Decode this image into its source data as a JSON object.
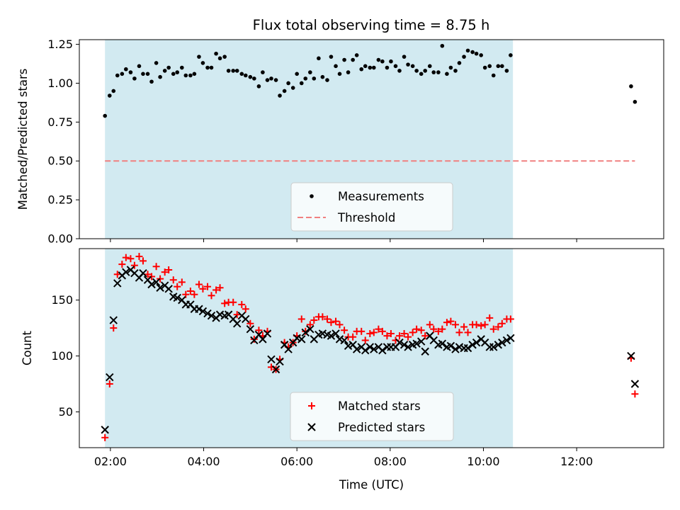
{
  "title": "Flux total observing time = 8.75 h",
  "chart_data": [
    {
      "type": "scatter",
      "panel": "top",
      "ylabel": "Matched/Predicted stars",
      "ylim": [
        0,
        1.28
      ],
      "yticks": [
        "0.00",
        "0.25",
        "0.50",
        "0.75",
        "1.00",
        "1.25"
      ],
      "ytick_values": [
        0,
        0.25,
        0.5,
        0.75,
        1.0,
        1.25
      ],
      "grid": false,
      "legend": {
        "placement": "bottom-center",
        "entries": [
          "Measurements",
          "Threshold"
        ]
      },
      "threshold": {
        "name": "Threshold",
        "value": 0.5,
        "x_start": "01:53",
        "x_end": "13:15",
        "color": "#f08080"
      },
      "series": [
        {
          "name": "Measurements",
          "color": "#000000",
          "x": [
            "01:53",
            "01:59",
            "02:04",
            "02:09",
            "02:15",
            "02:20",
            "02:26",
            "02:31",
            "02:37",
            "02:42",
            "02:48",
            "02:53",
            "02:59",
            "03:04",
            "03:10",
            "03:15",
            "03:21",
            "03:26",
            "03:32",
            "03:37",
            "03:43",
            "03:48",
            "03:54",
            "03:59",
            "04:05",
            "04:10",
            "04:16",
            "04:21",
            "04:27",
            "04:32",
            "04:38",
            "04:43",
            "04:49",
            "04:54",
            "05:00",
            "05:05",
            "05:11",
            "05:16",
            "05:22",
            "05:27",
            "05:33",
            "05:38",
            "05:44",
            "05:49",
            "05:55",
            "06:00",
            "06:06",
            "06:11",
            "06:17",
            "06:22",
            "06:28",
            "06:33",
            "06:39",
            "06:44",
            "06:50",
            "06:55",
            "07:01",
            "07:06",
            "07:12",
            "07:17",
            "07:23",
            "07:28",
            "07:34",
            "07:39",
            "07:45",
            "07:50",
            "07:56",
            "08:01",
            "08:07",
            "08:12",
            "08:18",
            "08:23",
            "08:29",
            "08:34",
            "08:40",
            "08:45",
            "08:51",
            "08:56",
            "09:02",
            "09:07",
            "09:13",
            "09:18",
            "09:24",
            "09:29",
            "09:35",
            "09:40",
            "09:46",
            "09:51",
            "09:57",
            "10:02",
            "10:08",
            "10:13",
            "10:19",
            "10:24",
            "10:30",
            "10:35",
            "13:10",
            "13:15"
          ],
          "y": [
            0.79,
            0.92,
            0.95,
            1.05,
            1.06,
            1.09,
            1.07,
            1.03,
            1.11,
            1.06,
            1.06,
            1.01,
            1.13,
            1.04,
            1.08,
            1.1,
            1.06,
            1.07,
            1.1,
            1.05,
            1.05,
            1.06,
            1.17,
            1.13,
            1.1,
            1.1,
            1.19,
            1.16,
            1.17,
            1.08,
            1.08,
            1.08,
            1.06,
            1.05,
            1.04,
            1.03,
            0.98,
            1.07,
            1.02,
            1.03,
            1.02,
            0.92,
            0.95,
            1.0,
            0.97,
            1.06,
            1.0,
            1.03,
            1.07,
            1.03,
            1.16,
            1.04,
            1.02,
            1.17,
            1.11,
            1.06,
            1.15,
            1.07,
            1.15,
            1.18,
            1.09,
            1.11,
            1.1,
            1.1,
            1.15,
            1.14,
            1.1,
            1.14,
            1.11,
            1.08,
            1.17,
            1.12,
            1.11,
            1.08,
            1.06,
            1.08,
            1.11,
            1.07,
            1.07,
            1.24,
            1.06,
            1.1,
            1.08,
            1.13,
            1.17,
            1.21,
            1.2,
            1.19,
            1.18,
            1.1,
            1.11,
            1.05,
            1.11,
            1.11,
            1.08,
            1.18,
            0.98,
            0.88
          ]
        }
      ]
    },
    {
      "type": "scatter",
      "panel": "bottom",
      "xlabel": "Time (UTC)",
      "ylabel": "Count",
      "ylim": [
        18,
        196
      ],
      "yticks": [
        "50",
        "100",
        "150"
      ],
      "ytick_values": [
        50,
        100,
        150
      ],
      "xlim": [
        "01:20",
        "13:52"
      ],
      "xticks": [
        "02:00",
        "04:00",
        "06:00",
        "08:00",
        "10:00",
        "12:00"
      ],
      "grid": false,
      "legend": {
        "placement": "bottom-center",
        "entries": [
          "Matched stars",
          "Predicted stars"
        ]
      },
      "series": [
        {
          "name": "Matched stars",
          "color": "#ff0000",
          "marker": "+",
          "x": [
            "01:53",
            "01:59",
            "02:04",
            "02:09",
            "02:15",
            "02:20",
            "02:26",
            "02:31",
            "02:37",
            "02:42",
            "02:48",
            "02:53",
            "02:59",
            "03:04",
            "03:10",
            "03:15",
            "03:21",
            "03:26",
            "03:32",
            "03:37",
            "03:43",
            "03:48",
            "03:54",
            "03:59",
            "04:05",
            "04:10",
            "04:16",
            "04:21",
            "04:27",
            "04:32",
            "04:38",
            "04:43",
            "04:49",
            "04:54",
            "05:00",
            "05:05",
            "05:11",
            "05:16",
            "05:22",
            "05:27",
            "05:33",
            "05:38",
            "05:44",
            "05:49",
            "05:55",
            "06:00",
            "06:06",
            "06:11",
            "06:17",
            "06:22",
            "06:28",
            "06:33",
            "06:39",
            "06:44",
            "06:50",
            "06:55",
            "07:01",
            "07:06",
            "07:12",
            "07:17",
            "07:23",
            "07:28",
            "07:34",
            "07:39",
            "07:45",
            "07:50",
            "07:56",
            "08:01",
            "08:07",
            "08:12",
            "08:18",
            "08:23",
            "08:29",
            "08:34",
            "08:40",
            "08:45",
            "08:51",
            "08:56",
            "09:02",
            "09:07",
            "09:13",
            "09:18",
            "09:24",
            "09:29",
            "09:35",
            "09:40",
            "09:46",
            "09:51",
            "09:57",
            "10:02",
            "10:08",
            "10:13",
            "10:19",
            "10:24",
            "10:30",
            "10:35",
            "13:10",
            "13:15"
          ],
          "y": [
            27,
            75,
            125,
            173,
            182,
            188,
            187,
            181,
            189,
            185,
            173,
            171,
            180,
            169,
            175,
            177,
            168,
            162,
            166,
            155,
            158,
            155,
            164,
            160,
            162,
            154,
            159,
            161,
            147,
            148,
            148,
            137,
            146,
            142,
            129,
            115,
            123,
            118,
            122,
            90,
            88,
            97,
            112,
            108,
            112,
            118,
            133,
            122,
            128,
            132,
            135,
            135,
            133,
            130,
            131,
            128,
            123,
            117,
            117,
            122,
            122,
            114,
            120,
            121,
            124,
            122,
            118,
            120,
            114,
            118,
            120,
            117,
            121,
            124,
            123,
            118,
            128,
            124,
            122,
            124,
            130,
            131,
            128,
            121,
            126,
            121,
            128,
            128,
            127,
            128,
            134,
            124,
            126,
            129,
            133,
            133,
            98,
            66
          ]
        },
        {
          "name": "Predicted stars",
          "color": "#000000",
          "marker": "x",
          "x": [
            "01:53",
            "01:59",
            "02:04",
            "02:09",
            "02:15",
            "02:20",
            "02:26",
            "02:31",
            "02:37",
            "02:42",
            "02:48",
            "02:53",
            "02:59",
            "03:04",
            "03:10",
            "03:15",
            "03:21",
            "03:26",
            "03:32",
            "03:37",
            "03:43",
            "03:48",
            "03:54",
            "03:59",
            "04:05",
            "04:10",
            "04:16",
            "04:21",
            "04:27",
            "04:32",
            "04:38",
            "04:43",
            "04:49",
            "04:54",
            "05:00",
            "05:05",
            "05:11",
            "05:16",
            "05:22",
            "05:27",
            "05:33",
            "05:38",
            "05:44",
            "05:49",
            "05:55",
            "06:00",
            "06:06",
            "06:11",
            "06:17",
            "06:22",
            "06:28",
            "06:33",
            "06:39",
            "06:44",
            "06:50",
            "06:55",
            "07:01",
            "07:06",
            "07:12",
            "07:17",
            "07:23",
            "07:28",
            "07:34",
            "07:39",
            "07:45",
            "07:50",
            "07:56",
            "08:01",
            "08:07",
            "08:12",
            "08:18",
            "08:23",
            "08:29",
            "08:34",
            "08:40",
            "08:45",
            "08:51",
            "08:56",
            "09:02",
            "09:07",
            "09:13",
            "09:18",
            "09:24",
            "09:29",
            "09:35",
            "09:40",
            "09:46",
            "09:51",
            "09:57",
            "10:02",
            "10:08",
            "10:13",
            "10:19",
            "10:24",
            "10:30",
            "10:35",
            "13:10",
            "13:15"
          ],
          "y": [
            34,
            81,
            132,
            165,
            172,
            175,
            177,
            174,
            170,
            174,
            168,
            164,
            166,
            161,
            163,
            160,
            153,
            152,
            150,
            146,
            146,
            142,
            142,
            140,
            138,
            136,
            134,
            137,
            136,
            137,
            133,
            129,
            136,
            133,
            124,
            114,
            119,
            115,
            120,
            97,
            88,
            95,
            110,
            106,
            112,
            116,
            115,
            121,
            124,
            115,
            119,
            120,
            119,
            118,
            120,
            115,
            114,
            109,
            110,
            106,
            108,
            105,
            108,
            106,
            108,
            105,
            108,
            108,
            108,
            112,
            110,
            108,
            110,
            111,
            113,
            104,
            118,
            114,
            110,
            111,
            108,
            109,
            106,
            108,
            107,
            107,
            110,
            112,
            115,
            112,
            108,
            108,
            110,
            112,
            114,
            116,
            100,
            75
          ]
        }
      ]
    }
  ],
  "observing_window": {
    "start": "01:53",
    "end": "10:38",
    "color": "#add8e6"
  }
}
